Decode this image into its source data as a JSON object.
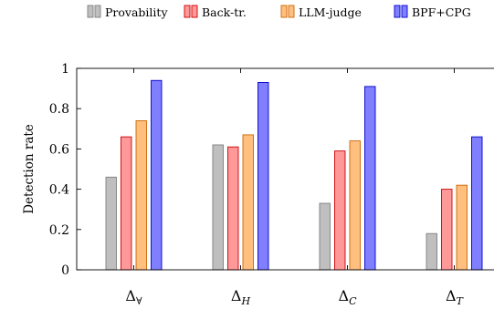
{
  "chart_data": {
    "type": "bar",
    "categories": [
      "Δ∀",
      "ΔH",
      "ΔC",
      "ΔT"
    ],
    "category_labels": [
      {
        "base": "Δ",
        "sub": "∀"
      },
      {
        "base": "Δ",
        "sub": "H"
      },
      {
        "base": "Δ",
        "sub": "C"
      },
      {
        "base": "Δ",
        "sub": "T"
      }
    ],
    "series": [
      {
        "name": "Provability",
        "fill": "#bfbfbf",
        "stroke": "#7f7f7f",
        "values": [
          0.46,
          0.62,
          0.33,
          0.18
        ]
      },
      {
        "name": "Back-tr.",
        "fill": "#ff9999",
        "stroke": "#cc0000",
        "values": [
          0.66,
          0.61,
          0.59,
          0.4
        ]
      },
      {
        "name": "LLM-judge",
        "fill": "#ffbf7f",
        "stroke": "#cc6600",
        "values": [
          0.74,
          0.67,
          0.64,
          0.42
        ]
      },
      {
        "name": "BPF+CPG",
        "fill": "#7f7fff",
        "stroke": "#0000cc",
        "values": [
          0.94,
          0.93,
          0.91,
          0.66
        ]
      }
    ],
    "ylabel": "Detection rate",
    "xlabel": "",
    "ylim": [
      0,
      1
    ],
    "yticks": [
      0,
      0.2,
      0.4,
      0.6,
      0.8,
      1
    ],
    "ytick_labels": [
      "0",
      "0.2",
      "0.4",
      "0.6",
      "0.8",
      "1"
    ],
    "legend_position": "top",
    "grid": false
  }
}
